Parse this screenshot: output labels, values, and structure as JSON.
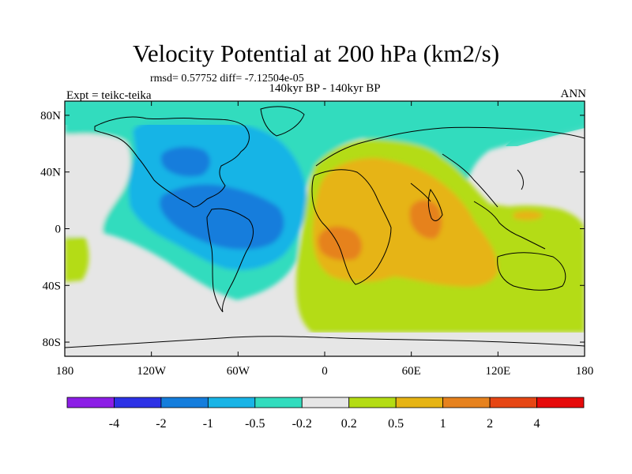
{
  "title": "Velocity Potential at 200 hPa (km2/s)",
  "stats": "rmsd= 0.57752 diff= -7.12504e-05",
  "subtitle": "140kyr BP - 140kyr BP",
  "experiment": "Expt = teikc-teika",
  "season": "ANN",
  "map": {
    "type": "filled-contour-map",
    "projection": "cylindrical-equidistant",
    "lon_range": [
      -180,
      180
    ],
    "lat_range": [
      -90,
      90
    ],
    "x_ticks": [
      {
        "lon": -180,
        "label": "180"
      },
      {
        "lon": -120,
        "label": "120W"
      },
      {
        "lon": -60,
        "label": "60W"
      },
      {
        "lon": 0,
        "label": "0"
      },
      {
        "lon": 60,
        "label": "60E"
      },
      {
        "lon": 120,
        "label": "120E"
      },
      {
        "lon": 180,
        "label": "180"
      }
    ],
    "y_ticks": [
      {
        "lat": 80,
        "label": "80N"
      },
      {
        "lat": 40,
        "label": "40N"
      },
      {
        "lat": 0,
        "label": "0"
      },
      {
        "lat": -40,
        "label": "40S"
      },
      {
        "lat": -80,
        "label": "80S"
      }
    ]
  },
  "colorbar": {
    "colors": [
      "#8c1ee6",
      "#2d32e6",
      "#147ddc",
      "#19b4e6",
      "#32dcbe",
      "#e6e6e6",
      "#b4dc14",
      "#e6b414",
      "#e6821e",
      "#e64614",
      "#e60a0a"
    ],
    "labels": [
      "-4",
      "-2",
      "-1",
      "-0.5",
      "-0.2",
      "0.2",
      "0.5",
      "1",
      "2",
      "4"
    ]
  },
  "colors": {
    "background": "#e6e6e6",
    "frame": "#000000"
  }
}
